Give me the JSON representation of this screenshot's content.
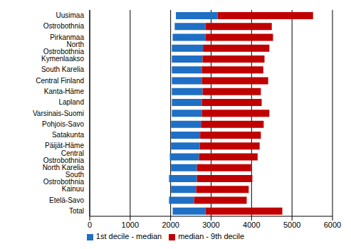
{
  "chart_data": {
    "type": "bar",
    "orientation": "horizontal",
    "categories": [
      "Uusimaa",
      "Ostrobothnia",
      "Pirkanmaa",
      "North Ostrobothnia",
      "Kymenlaakso",
      "South Karelia",
      "Central Finland",
      "Kanta-Häme",
      "Lapland",
      "Varsinais-Suomi",
      "Pohjois-Savo",
      "Satakunta",
      "Päijät-Häme",
      "Central Ostrobothnia",
      "North Karelia",
      "South Ostrobothnia",
      "Kainuu",
      "Etelä-Savo",
      "Total"
    ],
    "series": [
      {
        "name": "1st decile - median",
        "color": "#1f6fc5",
        "values": [
          [
            2130,
            3160
          ],
          [
            2100,
            2860
          ],
          [
            2050,
            2860
          ],
          [
            2030,
            2800
          ],
          [
            2030,
            2790
          ],
          [
            2030,
            2770
          ],
          [
            2030,
            2770
          ],
          [
            2030,
            2790
          ],
          [
            2030,
            2770
          ],
          [
            2030,
            2770
          ],
          [
            2010,
            2750
          ],
          [
            2010,
            2730
          ],
          [
            2010,
            2720
          ],
          [
            1980,
            2700
          ],
          [
            2010,
            2650
          ],
          [
            1960,
            2650
          ],
          [
            2010,
            2630
          ],
          [
            1960,
            2580
          ],
          [
            2050,
            2860
          ]
        ]
      },
      {
        "name": "median - 9th decile",
        "color": "#c00000",
        "values": [
          [
            3160,
            5520
          ],
          [
            2860,
            4500
          ],
          [
            2860,
            4530
          ],
          [
            2800,
            4440
          ],
          [
            2790,
            4320
          ],
          [
            2770,
            4290
          ],
          [
            2770,
            4410
          ],
          [
            2790,
            4230
          ],
          [
            2770,
            4250
          ],
          [
            2770,
            4440
          ],
          [
            2750,
            4300
          ],
          [
            2730,
            4230
          ],
          [
            2720,
            4200
          ],
          [
            2700,
            4150
          ],
          [
            2650,
            3990
          ],
          [
            2650,
            4020
          ],
          [
            2630,
            3930
          ],
          [
            2580,
            3880
          ],
          [
            2860,
            4760
          ]
        ]
      }
    ],
    "xlim": [
      0,
      6000
    ],
    "xticks": [
      0,
      1000,
      2000,
      3000,
      4000,
      5000,
      6000
    ],
    "grid": true,
    "legend": "bottom"
  }
}
